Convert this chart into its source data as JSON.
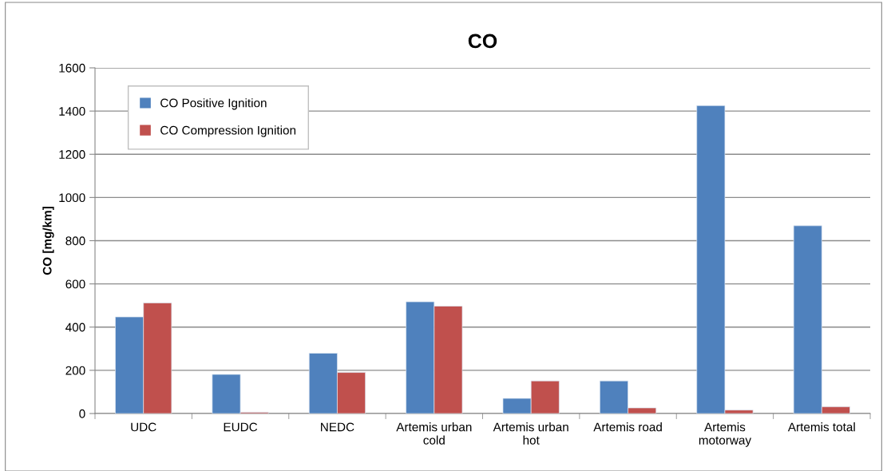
{
  "chart_data": {
    "type": "bar",
    "title": "CO",
    "ylabel": "CO [mg/km]",
    "categories": [
      "UDC",
      "EUDC",
      "NEDC",
      "Artemis urban cold",
      "Artemis urban hot",
      "Artemis road",
      "Artemis motorway",
      "Artemis total"
    ],
    "series": [
      {
        "name": "CO Positive Ignition",
        "color": "#4f81bd",
        "values": [
          447,
          181,
          279,
          517,
          70,
          151,
          1425,
          869
        ]
      },
      {
        "name": "CO Compression Ignition",
        "color": "#c0504d",
        "values": [
          512,
          6,
          190,
          497,
          151,
          26,
          16,
          31
        ]
      }
    ],
    "ylim": [
      0,
      1600
    ],
    "yticks": [
      0,
      200,
      400,
      600,
      800,
      1000,
      1200,
      1400,
      1600
    ],
    "grid": "y",
    "legend": "top left"
  }
}
